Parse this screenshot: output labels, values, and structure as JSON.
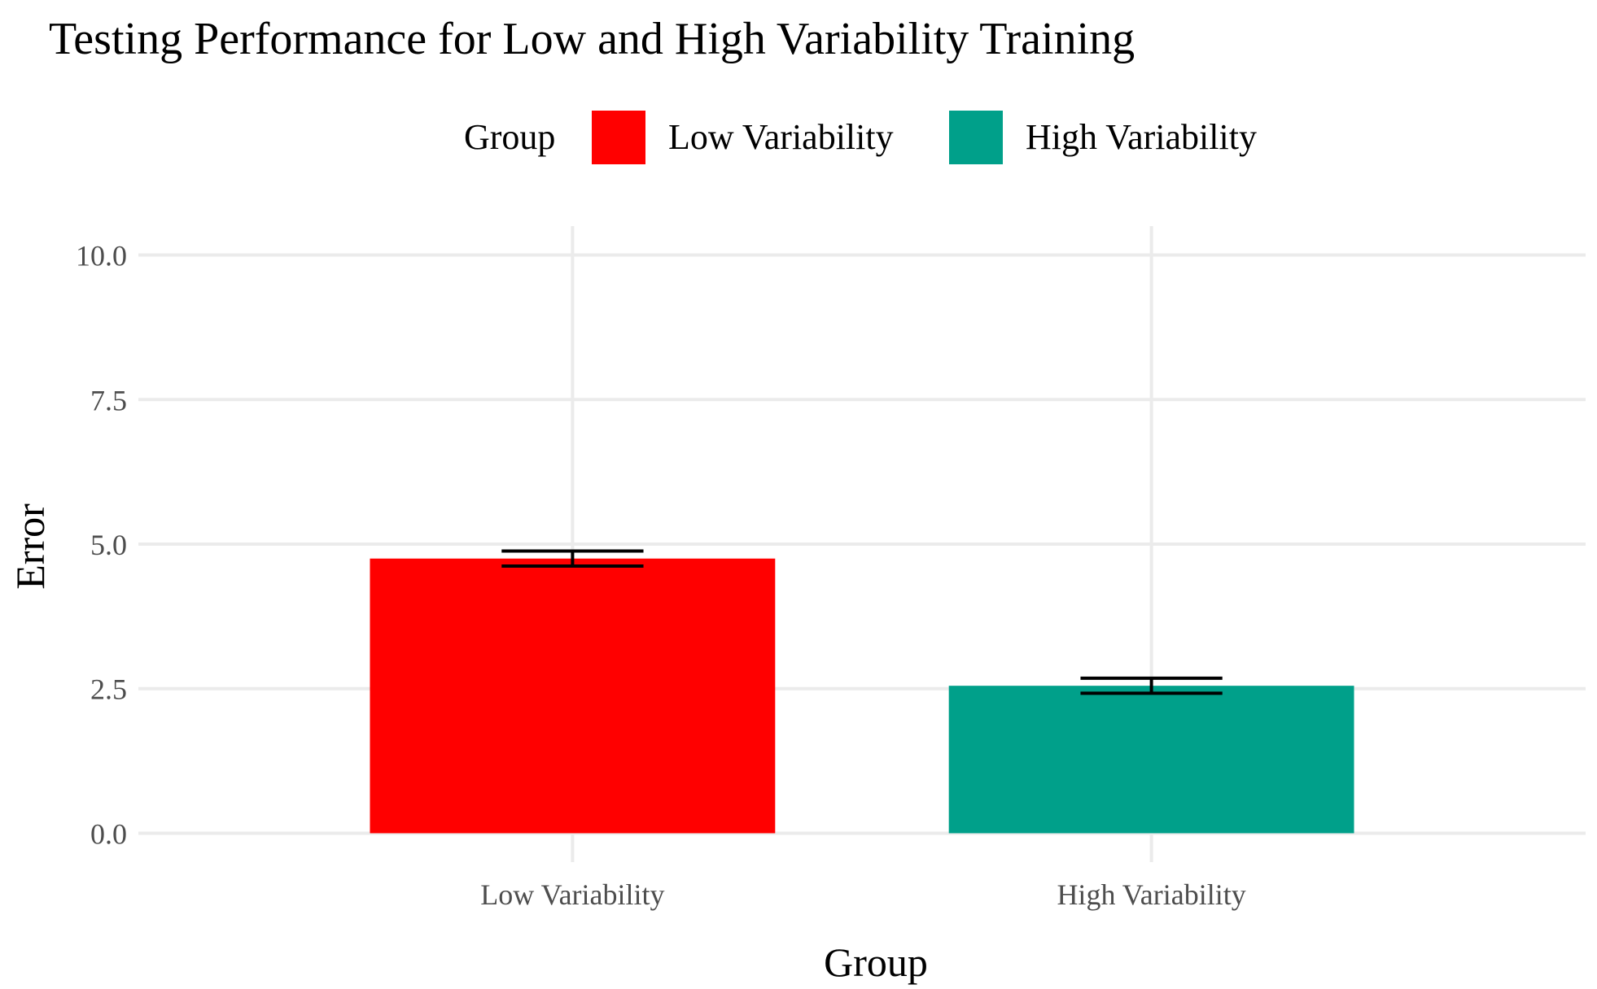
{
  "chart_data": {
    "type": "bar",
    "title": "Testing Performance for Low and High Variability Training",
    "xlabel": "Group",
    "ylabel": "Error",
    "categories": [
      "Low Variability",
      "High Variability"
    ],
    "values": [
      4.75,
      2.55
    ],
    "error": [
      0.13,
      0.13
    ],
    "colors": [
      "#ff0000",
      "#00a08a"
    ],
    "ylim": [
      -0.5,
      10.5
    ],
    "yticks": [
      0,
      2.5,
      5,
      7.5,
      10
    ],
    "ytick_labels": [
      "0.0",
      "2.5",
      "5.0",
      "7.5",
      "10.0"
    ],
    "grid": true,
    "legend": {
      "title": "Group",
      "position": "top",
      "entries": [
        "Low Variability",
        "High Variability"
      ]
    }
  }
}
